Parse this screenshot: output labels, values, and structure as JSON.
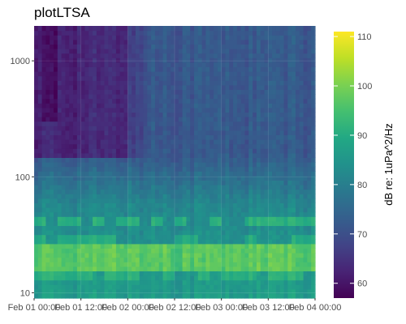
{
  "chart_data": {
    "type": "heatmap",
    "title": "plotLTSA",
    "xlabel": "",
    "ylabel": "",
    "x_ticks": [
      "Feb 01 00:00",
      "Feb 01 12:00",
      "Feb 02 00:00",
      "Feb 02 12:00",
      "Feb 03 00:00",
      "Feb 03 12:00",
      "Feb 04 00:00"
    ],
    "x_range": [
      "Feb 01 00:00",
      "Feb 04 00:00"
    ],
    "y_scale": "log",
    "y_ticks": [
      10,
      100,
      1000
    ],
    "y_range": [
      9,
      2000
    ],
    "colorbar": {
      "label": "dB re: 1uPa^2/Hz",
      "ticks": [
        60,
        70,
        80,
        90,
        100,
        110
      ],
      "range": [
        57,
        111
      ],
      "colormap": "viridis"
    },
    "grid": true,
    "legend_position": "right",
    "features": {
      "low_level_region": {
        "time_start": "Feb 01 00:00",
        "time_end": "Feb 02 06:00",
        "freq_min": 150,
        "freq_max": 2000,
        "db": 63
      },
      "background_high_freq_db": 72,
      "background_mid_freq_db": 82,
      "band_18_to_25_hz_db": 97,
      "tonal_lines": [
        {
          "freq_hz": 42,
          "db": 93
        },
        {
          "freq_hz": 29,
          "db": 92
        },
        {
          "freq_hz": 14,
          "db": 93
        }
      ]
    }
  }
}
